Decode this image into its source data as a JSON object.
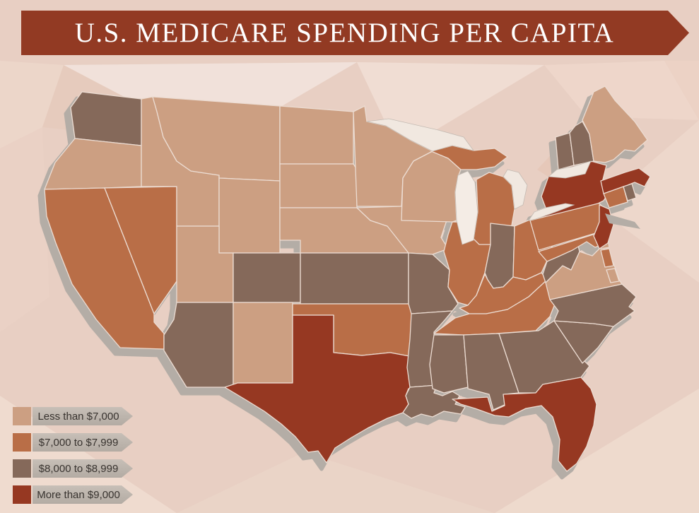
{
  "title": {
    "text": "U.S. MEDICARE SPENDING PER CAPITA"
  },
  "colors": {
    "banner": "#923a23",
    "background": "#e8cfc3",
    "legend_arrow": "#b7afa7",
    "map_shadow": "#b4ada6",
    "state_border": "#ecdcd2",
    "lake_fill": "#f1e8e0"
  },
  "legend": {
    "items": [
      {
        "label": "Less than $7,000",
        "category": "lt7000"
      },
      {
        "label": "$7,000 to $7,999",
        "category": "c7000to7999"
      },
      {
        "label": "$8,000 to $8,999",
        "category": "c8000to8999"
      },
      {
        "label": "More than $9,000",
        "category": "gt9000"
      }
    ]
  },
  "map": {
    "category_colors": {
      "lt7000": "#cc9f82",
      "c7000to7999": "#b96e47",
      "c8000to8999": "#85695a",
      "gt9000": "#963822"
    },
    "states": [
      {
        "id": "WA",
        "name": "Washington",
        "category": "c8000to8999"
      },
      {
        "id": "OR",
        "name": "Oregon",
        "category": "lt7000"
      },
      {
        "id": "CA",
        "name": "California",
        "category": "c7000to7999"
      },
      {
        "id": "NV",
        "name": "Nevada",
        "category": "c7000to7999"
      },
      {
        "id": "ID",
        "name": "Idaho",
        "category": "lt7000"
      },
      {
        "id": "MT",
        "name": "Montana",
        "category": "lt7000"
      },
      {
        "id": "WY",
        "name": "Wyoming",
        "category": "lt7000"
      },
      {
        "id": "UT",
        "name": "Utah",
        "category": "lt7000"
      },
      {
        "id": "CO",
        "name": "Colorado",
        "category": "c8000to8999"
      },
      {
        "id": "AZ",
        "name": "Arizona",
        "category": "c8000to8999"
      },
      {
        "id": "NM",
        "name": "New Mexico",
        "category": "lt7000"
      },
      {
        "id": "ND",
        "name": "North Dakota",
        "category": "lt7000"
      },
      {
        "id": "SD",
        "name": "South Dakota",
        "category": "lt7000"
      },
      {
        "id": "NE",
        "name": "Nebraska",
        "category": "lt7000"
      },
      {
        "id": "KS",
        "name": "Kansas",
        "category": "c8000to8999"
      },
      {
        "id": "OK",
        "name": "Oklahoma",
        "category": "c7000to7999"
      },
      {
        "id": "TX",
        "name": "Texas",
        "category": "gt9000"
      },
      {
        "id": "MN",
        "name": "Minnesota",
        "category": "lt7000"
      },
      {
        "id": "IA",
        "name": "Iowa",
        "category": "lt7000"
      },
      {
        "id": "MO",
        "name": "Missouri",
        "category": "c8000to8999"
      },
      {
        "id": "AR",
        "name": "Arkansas",
        "category": "c8000to8999"
      },
      {
        "id": "LA",
        "name": "Louisiana",
        "category": "c8000to8999"
      },
      {
        "id": "WI",
        "name": "Wisconsin",
        "category": "lt7000"
      },
      {
        "id": "IL",
        "name": "Illinois",
        "category": "c7000to7999"
      },
      {
        "id": "MI",
        "name": "Michigan",
        "category": "c7000to7999"
      },
      {
        "id": "IN",
        "name": "Indiana",
        "category": "c8000to8999"
      },
      {
        "id": "OH",
        "name": "Ohio",
        "category": "c7000to7999"
      },
      {
        "id": "KY",
        "name": "Kentucky",
        "category": "c7000to7999"
      },
      {
        "id": "TN",
        "name": "Tennessee",
        "category": "c7000to7999"
      },
      {
        "id": "MS",
        "name": "Mississippi",
        "category": "c8000to8999"
      },
      {
        "id": "AL",
        "name": "Alabama",
        "category": "c8000to8999"
      },
      {
        "id": "GA",
        "name": "Georgia",
        "category": "c8000to8999"
      },
      {
        "id": "FL",
        "name": "Florida",
        "category": "gt9000"
      },
      {
        "id": "SC",
        "name": "South Carolina",
        "category": "c8000to8999"
      },
      {
        "id": "NC",
        "name": "North Carolina",
        "category": "c8000to8999"
      },
      {
        "id": "VA",
        "name": "Virginia",
        "category": "lt7000"
      },
      {
        "id": "WV",
        "name": "West Virginia",
        "category": "c8000to8999"
      },
      {
        "id": "MD",
        "name": "Maryland",
        "category": "c7000to7999"
      },
      {
        "id": "DE",
        "name": "Delaware",
        "category": "lt7000"
      },
      {
        "id": "PA",
        "name": "Pennsylvania",
        "category": "c7000to7999"
      },
      {
        "id": "NY",
        "name": "New York",
        "category": "gt9000"
      },
      {
        "id": "NJ",
        "name": "New Jersey",
        "category": "gt9000"
      },
      {
        "id": "CT",
        "name": "Connecticut",
        "category": "c7000to7999"
      },
      {
        "id": "RI",
        "name": "Rhode Island",
        "category": "c8000to8999"
      },
      {
        "id": "MA",
        "name": "Massachusetts",
        "category": "gt9000"
      },
      {
        "id": "VT",
        "name": "Vermont",
        "category": "c8000to8999"
      },
      {
        "id": "NH",
        "name": "New Hampshire",
        "category": "c8000to8999"
      },
      {
        "id": "ME",
        "name": "Maine",
        "category": "lt7000"
      }
    ]
  }
}
